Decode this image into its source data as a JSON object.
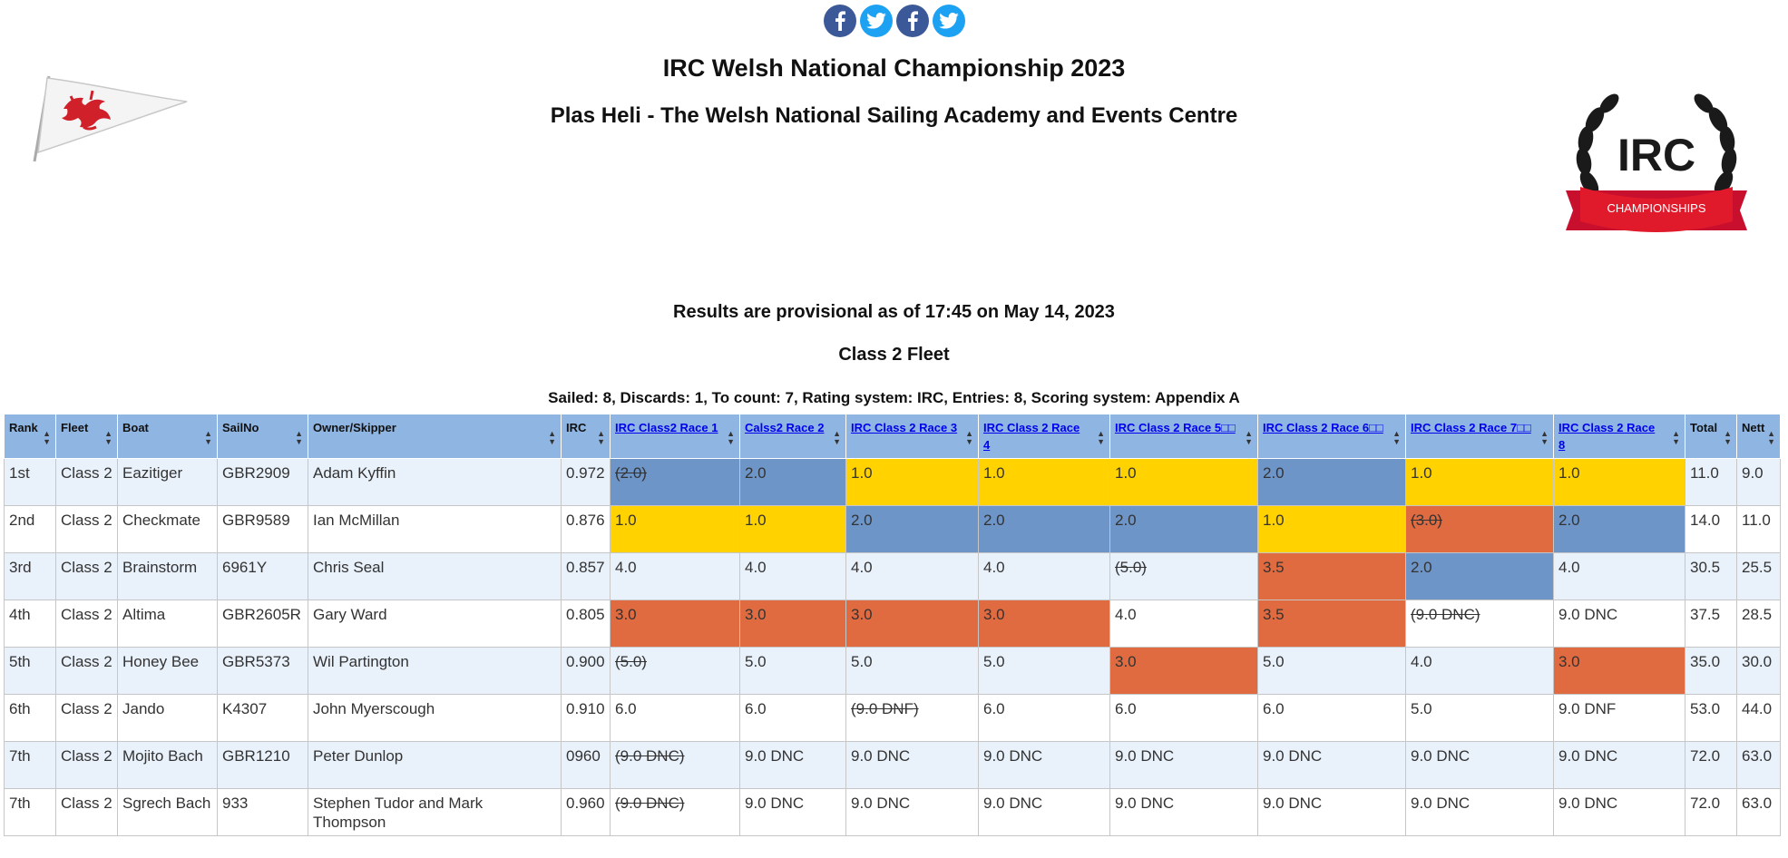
{
  "social": [
    {
      "icon": "facebook-icon"
    },
    {
      "icon": "twitter-icon"
    },
    {
      "icon": "facebook-icon"
    },
    {
      "icon": "twitter-icon"
    }
  ],
  "logos": {
    "left": "welsh-dragon-pennant-logo",
    "right_text": "IRC",
    "right_ribbon": "CHAMPIONSHIPS"
  },
  "header": {
    "title": "IRC Welsh National Championship 2023",
    "subtitle": "Plas Heli - The Welsh National Sailing Academy and Events Centre"
  },
  "status": "Results are provisional as of 17:45 on May 14, 2023",
  "fleet_title": "Class 2 Fleet",
  "summary": "Sailed: 8, Discards: 1, To count: 7, Rating system: IRC, Entries: 8, Scoring system: Appendix A",
  "colors": {
    "first": "#ffd200",
    "second": "#6e95c8",
    "third": "#e06b40",
    "header": "#8fb5e2"
  },
  "table": {
    "columns": [
      "Rank",
      "Fleet",
      "Boat",
      "SailNo",
      "Owner/Skipper",
      "IRC",
      "IRC Class2 Race 1",
      "Calss2 Race 2",
      "IRC Class 2 Race 3",
      "IRC Class 2 Race 4",
      "IRC Class 2 Race 5□□",
      "IRC Class 2 Race 6□□",
      "IRC Class 2 Race 7□□",
      "IRC Class 2 Race 8",
      "Total",
      "Nett"
    ],
    "rows": [
      {
        "rank": "1st",
        "fleet": "Class 2",
        "boat": "Eazitiger",
        "sailno": "GBR2909",
        "owner": "Adam Kyffin",
        "irc": "0.972",
        "races": [
          {
            "v": "(2.0)",
            "d": true,
            "p": 2
          },
          {
            "v": "2.0",
            "p": 2
          },
          {
            "v": "1.0",
            "p": 1
          },
          {
            "v": "1.0",
            "p": 1
          },
          {
            "v": "1.0",
            "p": 1
          },
          {
            "v": "2.0",
            "p": 2
          },
          {
            "v": "1.0",
            "p": 1
          },
          {
            "v": "1.0",
            "p": 1
          }
        ],
        "total": "11.0",
        "nett": "9.0"
      },
      {
        "rank": "2nd",
        "fleet": "Class 2",
        "boat": "Checkmate",
        "sailno": "GBR9589",
        "owner": "Ian McMillan",
        "irc": "0.876",
        "races": [
          {
            "v": "1.0",
            "p": 1
          },
          {
            "v": "1.0",
            "p": 1
          },
          {
            "v": "2.0",
            "p": 2
          },
          {
            "v": "2.0",
            "p": 2
          },
          {
            "v": "2.0",
            "p": 2
          },
          {
            "v": "1.0",
            "p": 1
          },
          {
            "v": "(3.0)",
            "d": true,
            "p": 3
          },
          {
            "v": "2.0",
            "p": 2
          }
        ],
        "total": "14.0",
        "nett": "11.0"
      },
      {
        "rank": "3rd",
        "fleet": "Class 2",
        "boat": "Brainstorm",
        "sailno": "6961Y",
        "owner": "Chris Seal",
        "irc": "0.857",
        "races": [
          {
            "v": "4.0"
          },
          {
            "v": "4.0"
          },
          {
            "v": "4.0"
          },
          {
            "v": "4.0"
          },
          {
            "v": "(5.0)",
            "d": true
          },
          {
            "v": "3.5",
            "p": 3
          },
          {
            "v": "2.0",
            "p": 2
          },
          {
            "v": "4.0"
          }
        ],
        "total": "30.5",
        "nett": "25.5"
      },
      {
        "rank": "4th",
        "fleet": "Class 2",
        "boat": "Altima",
        "sailno": "GBR2605R",
        "owner": "Gary Ward",
        "irc": "0.805",
        "races": [
          {
            "v": "3.0",
            "p": 3
          },
          {
            "v": "3.0",
            "p": 3
          },
          {
            "v": "3.0",
            "p": 3
          },
          {
            "v": "3.0",
            "p": 3
          },
          {
            "v": "4.0"
          },
          {
            "v": "3.5",
            "p": 3
          },
          {
            "v": "(9.0 DNC)",
            "d": true
          },
          {
            "v": "9.0 DNC"
          }
        ],
        "total": "37.5",
        "nett": "28.5"
      },
      {
        "rank": "5th",
        "fleet": "Class 2",
        "boat": "Honey Bee",
        "sailno": "GBR5373",
        "owner": "Wil Partington",
        "irc": "0.900",
        "races": [
          {
            "v": "(5.0)",
            "d": true
          },
          {
            "v": "5.0"
          },
          {
            "v": "5.0"
          },
          {
            "v": "5.0"
          },
          {
            "v": "3.0",
            "p": 3
          },
          {
            "v": "5.0"
          },
          {
            "v": "4.0"
          },
          {
            "v": "3.0",
            "p": 3
          }
        ],
        "total": "35.0",
        "nett": "30.0"
      },
      {
        "rank": "6th",
        "fleet": "Class 2",
        "boat": "Jando",
        "sailno": "K4307",
        "owner": "John Myerscough",
        "irc": "0.910",
        "races": [
          {
            "v": "6.0"
          },
          {
            "v": "6.0"
          },
          {
            "v": "(9.0 DNF)",
            "d": true
          },
          {
            "v": "6.0"
          },
          {
            "v": "6.0"
          },
          {
            "v": "6.0"
          },
          {
            "v": "5.0"
          },
          {
            "v": "9.0 DNF"
          }
        ],
        "total": "53.0",
        "nett": "44.0"
      },
      {
        "rank": "7th",
        "fleet": "Class 2",
        "boat": "Mojito Bach",
        "sailno": "GBR1210",
        "owner": "Peter Dunlop",
        "irc": "0960",
        "races": [
          {
            "v": "(9.0 DNC)",
            "d": true
          },
          {
            "v": "9.0 DNC"
          },
          {
            "v": "9.0 DNC"
          },
          {
            "v": "9.0 DNC"
          },
          {
            "v": "9.0 DNC"
          },
          {
            "v": "9.0 DNC"
          },
          {
            "v": "9.0 DNC"
          },
          {
            "v": "9.0 DNC"
          }
        ],
        "total": "72.0",
        "nett": "63.0"
      },
      {
        "rank": "7th",
        "fleet": "Class 2",
        "boat": "Sgrech Bach",
        "sailno": "933",
        "owner": "Stephen Tudor and Mark Thompson",
        "irc": "0.960",
        "races": [
          {
            "v": "(9.0 DNC)",
            "d": true
          },
          {
            "v": "9.0 DNC"
          },
          {
            "v": "9.0 DNC"
          },
          {
            "v": "9.0 DNC"
          },
          {
            "v": "9.0 DNC"
          },
          {
            "v": "9.0 DNC"
          },
          {
            "v": "9.0 DNC"
          },
          {
            "v": "9.0 DNC"
          }
        ],
        "total": "72.0",
        "nett": "63.0"
      }
    ]
  }
}
